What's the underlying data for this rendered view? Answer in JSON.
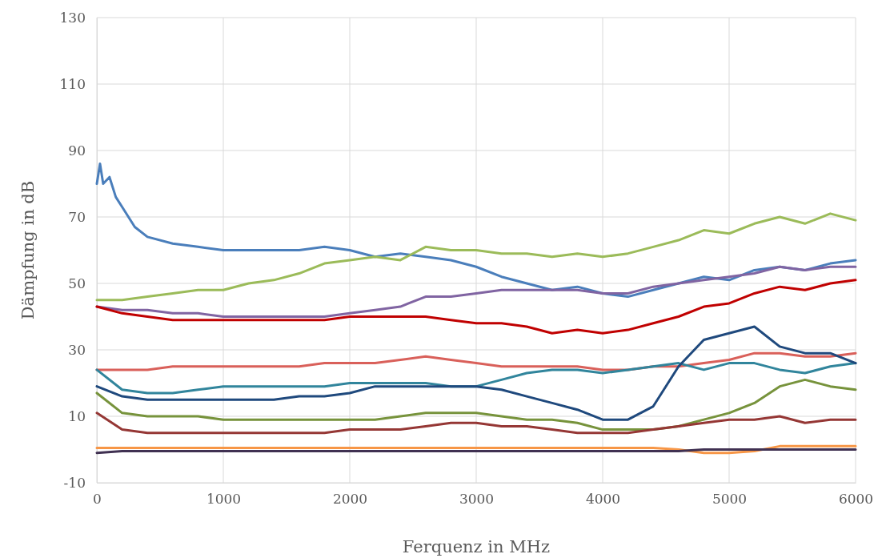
{
  "chart_data": {
    "type": "line",
    "xlabel": "Ferquenz in MHz",
    "ylabel": "Dämpfung in dB",
    "xlim": [
      0,
      6000
    ],
    "xticks": [
      0,
      1000,
      2000,
      3000,
      4000,
      5000,
      6000
    ],
    "ylim": [
      -10,
      130
    ],
    "yticks": [
      -10,
      10,
      30,
      50,
      70,
      90,
      110,
      130
    ],
    "grid": true,
    "line_style": "solid",
    "marker": "none",
    "x": [
      0,
      200,
      400,
      600,
      800,
      1000,
      1200,
      1400,
      1600,
      1800,
      2000,
      2200,
      2400,
      2600,
      2800,
      3000,
      3200,
      3400,
      3600,
      3800,
      4000,
      4200,
      4400,
      4600,
      4800,
      5000,
      5200,
      5400,
      5600,
      5800,
      6000
    ],
    "series": [
      {
        "color": "#4a7ebb",
        "x": [
          0,
          25,
          50,
          100,
          150,
          200,
          300,
          400,
          600,
          800,
          1000,
          1200,
          1400,
          1600,
          1800,
          2000,
          2200,
          2400,
          2600,
          2800,
          3000,
          3200,
          3400,
          3600,
          3800,
          4000,
          4200,
          4400,
          4600,
          4800,
          5000,
          5200,
          5400,
          5600,
          5800,
          6000
        ],
        "values": [
          80,
          86,
          80,
          82,
          76,
          73,
          67,
          64,
          62,
          61,
          60,
          60,
          60,
          60,
          61,
          60,
          58,
          59,
          58,
          57,
          55,
          52,
          50,
          48,
          49,
          47,
          46,
          48,
          50,
          52,
          51,
          54,
          55,
          54,
          56,
          57
        ]
      },
      {
        "color": "#9bbb59",
        "values": [
          45,
          45,
          46,
          47,
          48,
          48,
          50,
          51,
          53,
          56,
          57,
          58,
          57,
          61,
          60,
          60,
          59,
          59,
          58,
          59,
          58,
          59,
          61,
          63,
          66,
          65,
          68,
          70,
          68,
          71,
          69
        ]
      },
      {
        "color": "#8064a2",
        "values": [
          43,
          42,
          42,
          41,
          41,
          40,
          40,
          40,
          40,
          40,
          41,
          42,
          43,
          46,
          46,
          47,
          48,
          48,
          48,
          48,
          47,
          47,
          49,
          50,
          51,
          52,
          53,
          55,
          54,
          55,
          55
        ]
      },
      {
        "color": "#c00000",
        "values": [
          43,
          41,
          40,
          39,
          39,
          39,
          39,
          39,
          39,
          39,
          40,
          40,
          40,
          40,
          39,
          38,
          38,
          37,
          35,
          36,
          35,
          36,
          38,
          40,
          43,
          44,
          47,
          49,
          48,
          50,
          51
        ]
      },
      {
        "color": "#d9605a",
        "values": [
          24,
          24,
          24,
          25,
          25,
          25,
          25,
          25,
          25,
          26,
          26,
          26,
          27,
          28,
          27,
          26,
          25,
          25,
          25,
          25,
          24,
          24,
          25,
          25,
          26,
          27,
          29,
          29,
          28,
          28,
          29
        ]
      },
      {
        "color": "#31859c",
        "values": [
          24,
          18,
          17,
          17,
          18,
          19,
          19,
          19,
          19,
          19,
          20,
          20,
          20,
          20,
          19,
          19,
          21,
          23,
          24,
          24,
          23,
          24,
          25,
          26,
          24,
          26,
          26,
          24,
          23,
          25,
          26
        ]
      },
      {
        "color": "#1f497d",
        "values": [
          19,
          16,
          15,
          15,
          15,
          15,
          15,
          15,
          16,
          16,
          17,
          19,
          19,
          19,
          19,
          19,
          18,
          16,
          14,
          12,
          9,
          9,
          13,
          25,
          33,
          35,
          37,
          31,
          29,
          29,
          26
        ]
      },
      {
        "color": "#77933c",
        "values": [
          17,
          11,
          10,
          10,
          10,
          9,
          9,
          9,
          9,
          9,
          9,
          9,
          10,
          11,
          11,
          11,
          10,
          9,
          9,
          8,
          6,
          6,
          6,
          7,
          9,
          11,
          14,
          19,
          21,
          19,
          18
        ]
      },
      {
        "color": "#953735",
        "values": [
          11,
          6,
          5,
          5,
          5,
          5,
          5,
          5,
          5,
          5,
          6,
          6,
          6,
          7,
          8,
          8,
          7,
          7,
          6,
          5,
          5,
          5,
          6,
          7,
          8,
          9,
          9,
          10,
          8,
          9,
          9
        ]
      },
      {
        "color": "#f79646",
        "values": [
          0.5,
          0.5,
          0.5,
          0.5,
          0.5,
          0.5,
          0.5,
          0.5,
          0.5,
          0.5,
          0.5,
          0.5,
          0.5,
          0.5,
          0.5,
          0.5,
          0.5,
          0.5,
          0.5,
          0.5,
          0.5,
          0.5,
          0.5,
          0,
          -1,
          -1,
          -0.5,
          1,
          1,
          1,
          1
        ]
      },
      {
        "color": "#403152",
        "values": [
          -1,
          -0.5,
          -0.5,
          -0.5,
          -0.5,
          -0.5,
          -0.5,
          -0.5,
          -0.5,
          -0.5,
          -0.5,
          -0.5,
          -0.5,
          -0.5,
          -0.5,
          -0.5,
          -0.5,
          -0.5,
          -0.5,
          -0.5,
          -0.5,
          -0.5,
          -0.5,
          -0.5,
          0,
          0,
          0,
          0,
          0,
          0,
          0
        ]
      }
    ]
  }
}
